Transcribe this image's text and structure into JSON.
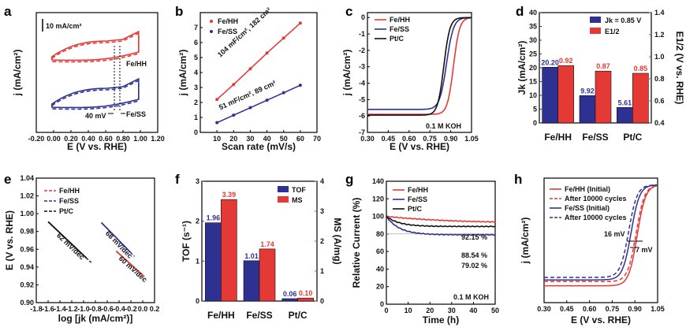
{
  "chart_data": [
    {
      "panel": "a",
      "type": "line",
      "xlabel": "E (V vs. RHE)",
      "ylabel": "j (mA/cm²)",
      "xticks": [
        "-0.20",
        "0.00",
        "0.20",
        "0.40",
        "0.60",
        "0.80",
        "1.00",
        "1.20"
      ],
      "scale_bar": "10 mA/cm²",
      "series": [
        {
          "name": "Fe/HH",
          "color": "#e53935"
        },
        {
          "name": "Fe/SS",
          "color": "#2e3192"
        }
      ],
      "annotations": [
        "Fe/HH",
        "Fe/SS",
        "40 mV"
      ]
    },
    {
      "panel": "b",
      "type": "scatter",
      "xlabel": "Scan rate (mV/s)",
      "ylabel": "j (mA/cm²)",
      "xlim": [
        0,
        70
      ],
      "ylim": [
        0,
        8
      ],
      "xticks": [
        "10",
        "20",
        "30",
        "40",
        "50",
        "60",
        "70"
      ],
      "yticks": [
        "0",
        "1",
        "2",
        "3",
        "4",
        "5",
        "6",
        "7"
      ],
      "series": [
        {
          "name": "Fe/HH",
          "color": "#e53935",
          "x": [
            10,
            20,
            30,
            40,
            50,
            60
          ],
          "values": [
            2.2,
            3.2,
            4.25,
            5.3,
            6.3,
            7.3
          ],
          "label": "104 mF/cm², 182 cm²"
        },
        {
          "name": "Fe/SS",
          "color": "#2e3192",
          "x": [
            10,
            20,
            30,
            40,
            50,
            60
          ],
          "values": [
            0.65,
            1.15,
            1.65,
            2.15,
            2.65,
            3.15
          ],
          "label": "51 mF/cm², 89 cm²"
        }
      ]
    },
    {
      "panel": "c",
      "type": "line",
      "xlabel": "E (V vs. RHE)",
      "ylabel": "j (mA/cm²)",
      "xlim": [
        0.3,
        1.05
      ],
      "ylim": [
        -7,
        0.3
      ],
      "xticks": [
        "0.30",
        "0.45",
        "0.60",
        "0.75",
        "0.90",
        "1.05"
      ],
      "yticks": [
        "0",
        "-1",
        "-2",
        "-3",
        "-4",
        "-5",
        "-6",
        "-7"
      ],
      "annotation": "0.1 M KOH",
      "series": [
        {
          "name": "Fe/HH",
          "color": "#e53935",
          "e_half": 0.92,
          "jlim": -5.9,
          "width": 0.022
        },
        {
          "name": "Fe/SS",
          "color": "#2e3192",
          "e_half": 0.87,
          "jlim": -5.6,
          "width": 0.025
        },
        {
          "name": "Pt/C",
          "color": "#111111",
          "e_half": 0.85,
          "jlim": -5.95,
          "width": 0.022
        }
      ]
    },
    {
      "panel": "d",
      "type": "bar",
      "categories": [
        "Fe/HH",
        "Fe/SS",
        "Pt/C"
      ],
      "ylabel": "Jk (mA/cm²)",
      "y2label": "E1/2 (V vs. RHE)",
      "ylim": [
        0,
        40
      ],
      "y2lim": [
        0.4,
        1.4
      ],
      "yticks": [
        "0",
        "5",
        "10",
        "15",
        "20",
        "25",
        "30",
        "35",
        "40"
      ],
      "y2ticks": [
        "0.4",
        "0.6",
        "0.8",
        "1.0",
        "1.2",
        "1.4"
      ],
      "legend": [
        "Jk = 0.85 V",
        "E1/2"
      ],
      "series": [
        {
          "name": "Jk",
          "color": "#2e3192",
          "values": [
            20.2,
            9.92,
            5.61
          ],
          "labels": [
            "20.20",
            "9.92",
            "5.61"
          ]
        },
        {
          "name": "E1/2",
          "color": "#e53935",
          "values": [
            0.92,
            0.87,
            0.85
          ],
          "labels": [
            "0.92",
            "0.87",
            "0.85"
          ]
        }
      ]
    },
    {
      "panel": "e",
      "type": "line",
      "xlabel": "log [jk (mA/cm²)]",
      "ylabel": "E (V vs. RHE)",
      "xlim": [
        -1.8,
        0.2
      ],
      "ylim": [
        0.9,
        1.04
      ],
      "xticks": [
        "-1.8",
        "-1.6",
        "-1.4",
        "-1.2",
        "-1.0",
        "-0.8",
        "-0.6",
        "-0.4",
        "-0.2",
        "0.0",
        "0.2"
      ],
      "yticks": [
        "0.90",
        "0.92",
        "0.94",
        "0.96",
        "0.98",
        "1.00",
        "1.02",
        "1.04"
      ],
      "series": [
        {
          "name": "Fe/HH",
          "color": "#e53935",
          "x": [
            -0.45,
            0.0
          ],
          "y": [
            0.958,
            0.931
          ],
          "label": "60 mV/dec"
        },
        {
          "name": "Fe/SS",
          "color": "#2e3192",
          "x": [
            -0.7,
            -0.2
          ],
          "y": [
            0.99,
            0.956
          ],
          "label": "68 mV/dec"
        },
        {
          "name": "Pt/C",
          "color": "#111111",
          "x": [
            -1.6,
            -0.95
          ],
          "y": [
            0.991,
            0.95
          ],
          "label": "62 mV/dec"
        }
      ]
    },
    {
      "panel": "f",
      "type": "bar",
      "categories": [
        "Fe/HH",
        "Fe/SS",
        "Pt/C"
      ],
      "ylabel": "TOF (s⁻¹)",
      "y2label": "MS (A/mg)",
      "ylim": [
        0,
        3
      ],
      "y2lim": [
        0,
        4
      ],
      "yticks": [
        "0",
        "1",
        "2",
        "3"
      ],
      "y2ticks": [
        "0",
        "1",
        "2",
        "3",
        "4"
      ],
      "legend": [
        "TOF",
        "MS"
      ],
      "series": [
        {
          "name": "TOF",
          "color": "#2e3192",
          "values": [
            1.96,
            1.01,
            0.06
          ],
          "labels": [
            "1.96",
            "1.01",
            "0.06"
          ]
        },
        {
          "name": "MS",
          "color": "#e53935",
          "values": [
            3.39,
            1.74,
            0.1
          ],
          "labels": [
            "3.39",
            "1.74",
            "0.10"
          ]
        }
      ]
    },
    {
      "panel": "g",
      "type": "line",
      "xlabel": "Time (h)",
      "ylabel": "Relative Current (%)",
      "xlim": [
        0,
        50
      ],
      "ylim": [
        0,
        140
      ],
      "xticks": [
        "0",
        "10",
        "20",
        "30",
        "40",
        "50"
      ],
      "yticks": [
        "0",
        "20",
        "40",
        "60",
        "80",
        "100",
        "120",
        "140"
      ],
      "annotation": "0.1 M KOH",
      "series": [
        {
          "name": "Fe/HH",
          "color": "#e53935",
          "end": 92.15,
          "label": "92.15 %"
        },
        {
          "name": "Fe/SS",
          "color": "#2e3192",
          "end": 79.02,
          "label": "79.02 %"
        },
        {
          "name": "Pt/C",
          "color": "#111111",
          "end": 88.54,
          "label": "88.54 %"
        }
      ]
    },
    {
      "panel": "h",
      "type": "line",
      "xlabel": "E (V vs. RHE)",
      "ylabel": "j (mA/cm²)",
      "xlim": [
        0.3,
        1.05
      ],
      "xticks": [
        "0.30",
        "0.45",
        "0.60",
        "0.75",
        "0.90",
        "1.05"
      ],
      "annotations": [
        "16 mV",
        "7 mV"
      ],
      "series": [
        {
          "name": "Fe/HH (Initial)",
          "color": "#e53935",
          "dash": false,
          "e_half": 0.915,
          "jlim": -6.0
        },
        {
          "name": "After 10000 cycles",
          "color": "#e53935",
          "dash": true,
          "e_half": 0.908,
          "jlim": -5.75
        },
        {
          "name": "Fe/SS (Initial)",
          "color": "#2e3192",
          "dash": false,
          "e_half": 0.875,
          "jlim": -5.65
        },
        {
          "name": "After 10000 cycles",
          "color": "#2e3192",
          "dash": true,
          "e_half": 0.859,
          "jlim": -5.5
        }
      ]
    }
  ]
}
